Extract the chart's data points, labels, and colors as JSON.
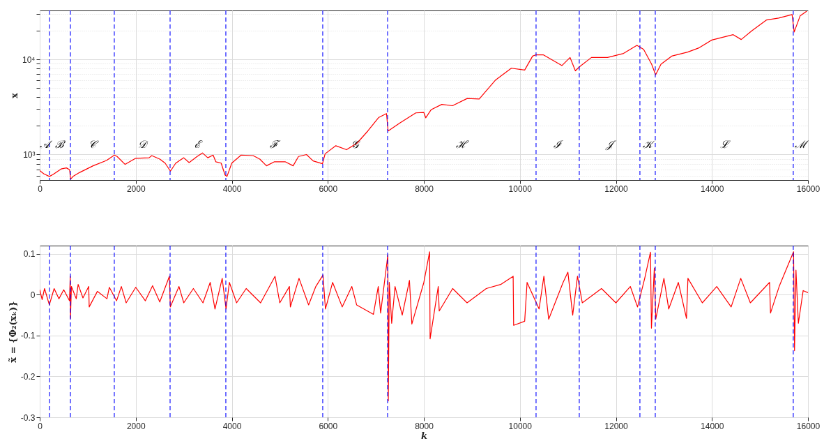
{
  "chart_data": [
    {
      "type": "line",
      "ylabel": "x",
      "color": "#ff0000",
      "log": true,
      "grid": true,
      "line_style": "solid",
      "x": [
        0,
        83,
        200,
        278,
        444,
        556,
        622,
        644,
        694,
        833,
        1111,
        1389,
        1556,
        1611,
        1778,
        2000,
        2278,
        2333,
        2500,
        2611,
        2722,
        2833,
        3000,
        3111,
        3278,
        3389,
        3500,
        3611,
        3667,
        3778,
        3861,
        3900,
        4000,
        4194,
        4444,
        4583,
        4722,
        4889,
        5111,
        5278,
        5389,
        5556,
        5694,
        5889,
        5944,
        6167,
        6389,
        6611,
        6833,
        7056,
        7222,
        7256,
        7500,
        7833,
        8000,
        8039,
        8150,
        8373,
        8596,
        8903,
        9153,
        9487,
        9822,
        10100,
        10265,
        10337,
        10487,
        10877,
        11045,
        11156,
        11240,
        11490,
        11825,
        12159,
        12437,
        12577,
        12744,
        12827,
        12939,
        13162,
        13496,
        13719,
        13997,
        14443,
        14610,
        14833,
        15139,
        15390,
        15669,
        15713,
        15836,
        15975
      ],
      "values": [
        678,
        628,
        589,
        619,
        705,
        724,
        692,
        552,
        589,
        649,
        762,
        867,
        987,
        955,
        788,
        914,
        925,
        975,
        896,
        813,
        670,
        813,
        925,
        824,
        955,
        1040,
        925,
        987,
        840,
        813,
        608,
        589,
        813,
        987,
        975,
        896,
        762,
        840,
        840,
        762,
        955,
        1000,
        857,
        802,
        1019,
        1238,
        1124,
        1321,
        1767,
        2442,
        2692,
        1767,
        2143,
        2740,
        2766,
        2432,
        2953,
        3363,
        3258,
        3882,
        3830,
        6025,
        8072,
        7715,
        10810,
        11160,
        11160,
        8610,
        10460,
        7568,
        8340,
        10460,
        10460,
        11530,
        14000,
        12710,
        8890,
        6870,
        8890,
        10810,
        11910,
        13130,
        15950,
        18170,
        16150,
        20010,
        25930,
        27160,
        29540,
        19360,
        28560,
        32000
      ],
      "xlim": [
        0,
        16000
      ],
      "xticks": [
        0,
        2000,
        4000,
        6000,
        8000,
        10000,
        12000,
        14000,
        16000
      ],
      "ylim": [
        540,
        32600
      ],
      "yticks": [
        {
          "value": 600,
          "label": null
        },
        {
          "value": 700,
          "label": null
        },
        {
          "value": 800,
          "label": null
        },
        {
          "value": 900,
          "label": null
        },
        {
          "value": 1000,
          "label": "10³"
        },
        {
          "value": 2000,
          "label": null
        },
        {
          "value": 3000,
          "label": null
        },
        {
          "value": 4000,
          "label": null
        },
        {
          "value": 5000,
          "label": null
        },
        {
          "value": 6000,
          "label": null
        },
        {
          "value": 7000,
          "label": null
        },
        {
          "value": 8000,
          "label": null
        },
        {
          "value": 9000,
          "label": null
        },
        {
          "value": 10000,
          "label": "10⁴"
        },
        {
          "value": 20000,
          "label": null
        },
        {
          "value": 30000,
          "label": null
        }
      ],
      "ref_lines": [
        {
          "axis": "x",
          "value": 203,
          "color": "#0000ff",
          "line_style": "dashed"
        },
        {
          "axis": "x",
          "value": 639,
          "color": "#0000ff",
          "line_style": "dashed"
        },
        {
          "axis": "x",
          "value": 1553,
          "color": "#0000ff",
          "line_style": "dashed"
        },
        {
          "axis": "x",
          "value": 2715,
          "color": "#0000ff",
          "line_style": "dashed"
        },
        {
          "axis": "x",
          "value": 3876,
          "color": "#0000ff",
          "line_style": "dashed"
        },
        {
          "axis": "x",
          "value": 5894,
          "color": "#0000ff",
          "line_style": "dashed"
        },
        {
          "axis": "x",
          "value": 7245,
          "color": "#0000ff",
          "line_style": "dashed"
        },
        {
          "axis": "x",
          "value": 10337,
          "color": "#0000ff",
          "line_style": "dashed"
        },
        {
          "axis": "x",
          "value": 11237,
          "color": "#0000ff",
          "line_style": "dashed"
        },
        {
          "axis": "x",
          "value": 12500,
          "color": "#0000ff",
          "line_style": "dashed"
        },
        {
          "axis": "x",
          "value": 12820,
          "color": "#0000ff",
          "line_style": "dashed"
        },
        {
          "axis": "x",
          "value": 15694,
          "color": "#0000ff",
          "line_style": "dashed"
        }
      ],
      "annotations": [
        "𝒜",
        "ℬ",
        "𝒞",
        "𝒟",
        "ℰ",
        "ℱ",
        "𝒢",
        "ℋ",
        "ℐ",
        "𝒥",
        "𝒦",
        "ℒ",
        "ℳ"
      ]
    },
    {
      "type": "line",
      "ylabel": "x̃ = {Φ₂(xₖ)}",
      "xlabel": "k",
      "color": "#ff0000",
      "grid": true,
      "line_style": "solid",
      "x": [
        0,
        50,
        100,
        200,
        300,
        400,
        500,
        620,
        635,
        640,
        660,
        760,
        800,
        900,
        1020,
        1030,
        1200,
        1400,
        1450,
        1600,
        1700,
        1800,
        2000,
        2200,
        2350,
        2500,
        2700,
        2720,
        2900,
        3000,
        3200,
        3400,
        3550,
        3650,
        3800,
        3880,
        3950,
        4100,
        4300,
        4600,
        4900,
        5000,
        5200,
        5220,
        5400,
        5600,
        5750,
        5900,
        5950,
        6100,
        6300,
        6500,
        6600,
        6950,
        7050,
        7100,
        7250,
        7260,
        7280,
        7330,
        7400,
        7550,
        7700,
        7750,
        8000,
        8120,
        8130,
        8300,
        8320,
        8600,
        8900,
        9300,
        9600,
        9860,
        9870,
        10100,
        10150,
        10400,
        10500,
        10600,
        10900,
        11000,
        11100,
        11200,
        11300,
        11700,
        12000,
        12300,
        12450,
        12600,
        12720,
        12740,
        12800,
        12830,
        13000,
        13100,
        13300,
        13470,
        13500,
        13800,
        14100,
        14400,
        14600,
        14800,
        15200,
        15220,
        15400,
        15700,
        15720,
        15750,
        15800,
        15900,
        16000
      ],
      "values": [
        0.012,
        -0.012,
        0.015,
        -0.025,
        0.015,
        -0.01,
        0.012,
        -0.015,
        0.045,
        -0.058,
        0.02,
        -0.01,
        0.025,
        -0.008,
        0.02,
        -0.03,
        0.008,
        -0.01,
        0.018,
        -0.015,
        0.02,
        -0.02,
        0.018,
        -0.015,
        0.022,
        -0.018,
        0.045,
        -0.03,
        0.02,
        -0.02,
        0.015,
        -0.02,
        0.03,
        -0.035,
        0.04,
        -0.035,
        0.03,
        -0.02,
        0.015,
        -0.02,
        0.045,
        -0.02,
        0.02,
        -0.03,
        0.04,
        -0.025,
        0.02,
        0.048,
        -0.035,
        0.03,
        -0.03,
        0.02,
        -0.025,
        -0.048,
        0.02,
        -0.045,
        0.097,
        -0.26,
        0.03,
        -0.07,
        0.02,
        -0.05,
        0.035,
        -0.072,
        0.03,
        0.105,
        -0.108,
        0.02,
        -0.04,
        0.015,
        -0.02,
        0.015,
        0.025,
        0.045,
        -0.075,
        -0.065,
        0.03,
        -0.035,
        0.045,
        -0.06,
        0.03,
        0.055,
        -0.05,
        0.045,
        -0.02,
        0.015,
        -0.02,
        0.02,
        -0.03,
        0.04,
        0.104,
        -0.082,
        0.065,
        -0.06,
        0.04,
        -0.035,
        0.03,
        -0.058,
        0.04,
        -0.02,
        0.02,
        -0.03,
        0.04,
        -0.02,
        0.03,
        -0.045,
        0.02,
        0.105,
        -0.137,
        0.06,
        -0.07,
        0.01,
        0.005
      ],
      "xlim": [
        0,
        16000
      ],
      "xticks": [
        0,
        2000,
        4000,
        6000,
        8000,
        10000,
        12000,
        14000,
        16000
      ],
      "ylim": [
        -0.3,
        0.12
      ],
      "yticks": [
        -0.3,
        -0.2,
        -0.1,
        0,
        0.1
      ],
      "ref_lines": [
        {
          "axis": "x",
          "value": 203,
          "color": "#0000ff",
          "line_style": "dashed"
        },
        {
          "axis": "x",
          "value": 639,
          "color": "#0000ff",
          "line_style": "dashed"
        },
        {
          "axis": "x",
          "value": 1553,
          "color": "#0000ff",
          "line_style": "dashed"
        },
        {
          "axis": "x",
          "value": 2715,
          "color": "#0000ff",
          "line_style": "dashed"
        },
        {
          "axis": "x",
          "value": 3876,
          "color": "#0000ff",
          "line_style": "dashed"
        },
        {
          "axis": "x",
          "value": 5894,
          "color": "#0000ff",
          "line_style": "dashed"
        },
        {
          "axis": "x",
          "value": 7245,
          "color": "#0000ff",
          "line_style": "dashed"
        },
        {
          "axis": "x",
          "value": 10337,
          "color": "#0000ff",
          "line_style": "dashed"
        },
        {
          "axis": "x",
          "value": 11237,
          "color": "#0000ff",
          "line_style": "dashed"
        },
        {
          "axis": "x",
          "value": 12500,
          "color": "#0000ff",
          "line_style": "dashed"
        },
        {
          "axis": "x",
          "value": 12820,
          "color": "#0000ff",
          "line_style": "dashed"
        },
        {
          "axis": "x",
          "value": 15694,
          "color": "#0000ff",
          "line_style": "dashed"
        }
      ]
    }
  ]
}
